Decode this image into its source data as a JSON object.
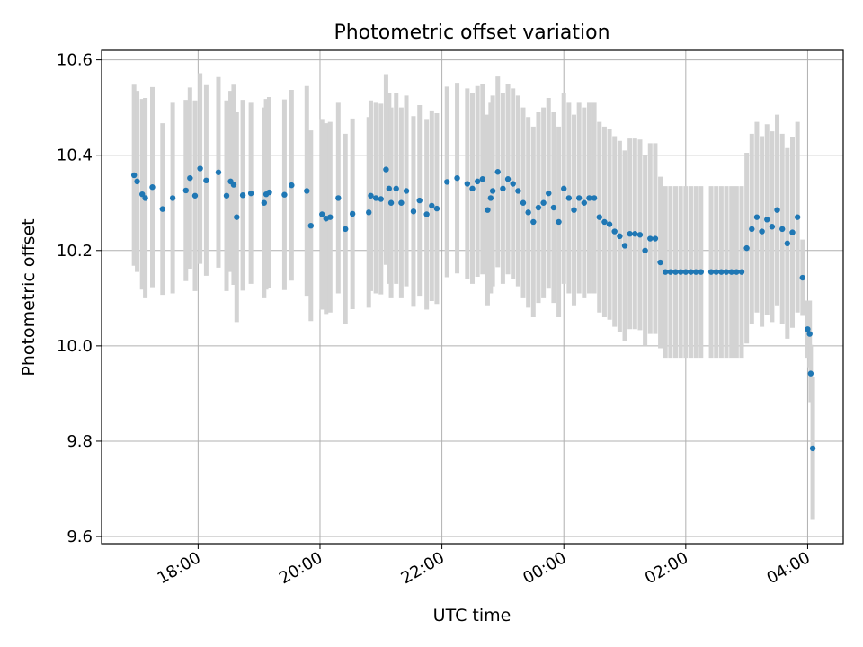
{
  "chart_data": {
    "type": "scatter",
    "title": "Photometric offset variation",
    "xlabel": "UTC time",
    "ylabel": "Photometric offset",
    "x_unit": "UTC time (HH:MM), spanning midnight",
    "x_ticks": [
      "18:00",
      "20:00",
      "22:00",
      "00:00",
      "02:00",
      "04:00"
    ],
    "xlim": [
      "16:25",
      "04:35"
    ],
    "y_ticks": [
      9.6,
      9.8,
      10.0,
      10.2,
      10.4,
      10.6
    ],
    "ylim": [
      9.585,
      10.62
    ],
    "grid": true,
    "legend": "none",
    "colors": {
      "marker": "#1f77b4",
      "errorbar": "#d3d3d3",
      "grid": "#b0b0b0"
    },
    "series": [
      {
        "x": [
          "16:57",
          "17:00",
          "17:05",
          "17:08",
          "17:15",
          "17:25",
          "17:35",
          "17:48",
          "17:52",
          "17:57",
          "18:02",
          "18:08",
          "18:20",
          "18:28",
          "18:32",
          "18:35",
          "18:38",
          "18:44",
          "18:52",
          "19:05",
          "19:07",
          "19:10",
          "19:25",
          "19:32",
          "19:47",
          "19:51",
          "20:02",
          "20:06",
          "20:10",
          "20:18",
          "20:25",
          "20:32",
          "20:48",
          "20:50",
          "20:55",
          "21:00",
          "21:05",
          "21:08",
          "21:10",
          "21:15",
          "21:20",
          "21:25",
          "21:32",
          "21:38",
          "21:45",
          "21:50",
          "21:55",
          "22:05",
          "22:15",
          "22:25",
          "22:30",
          "22:35",
          "22:40",
          "22:45",
          "22:48",
          "22:50",
          "22:55",
          "23:00",
          "23:05",
          "23:10",
          "23:15",
          "23:20",
          "23:25",
          "23:30",
          "23:35",
          "23:40",
          "23:45",
          "23:50",
          "23:55",
          "00:00",
          "00:05",
          "00:10",
          "00:15",
          "00:20",
          "00:25",
          "00:30",
          "00:35",
          "00:40",
          "00:45",
          "00:50",
          "00:55",
          "01:00",
          "01:05",
          "01:10",
          "01:15",
          "01:20",
          "01:25",
          "01:30",
          "01:35",
          "01:40",
          "01:45",
          "01:50",
          "01:55",
          "02:00",
          "02:05",
          "02:10",
          "02:15",
          "02:25",
          "02:30",
          "02:35",
          "02:40",
          "02:45",
          "02:50",
          "02:55",
          "03:00",
          "03:05",
          "03:10",
          "03:15",
          "03:20",
          "03:25",
          "03:30",
          "03:35",
          "03:40",
          "03:45",
          "03:50",
          "03:55",
          "04:00",
          "04:02",
          "04:03",
          "04:05"
        ],
        "y": [
          10.358,
          10.345,
          10.318,
          10.31,
          10.333,
          10.287,
          10.31,
          10.326,
          10.352,
          10.315,
          10.372,
          10.347,
          10.364,
          10.315,
          10.345,
          10.338,
          10.27,
          10.316,
          10.32,
          10.3,
          10.318,
          10.322,
          10.317,
          10.337,
          10.325,
          10.252,
          10.276,
          10.267,
          10.27,
          10.31,
          10.245,
          10.277,
          10.28,
          10.315,
          10.31,
          10.308,
          10.37,
          10.33,
          10.3,
          10.33,
          10.3,
          10.325,
          10.282,
          10.305,
          10.276,
          10.294,
          10.288,
          10.344,
          10.352,
          10.34,
          10.33,
          10.345,
          10.35,
          10.285,
          10.31,
          10.325,
          10.365,
          10.33,
          10.35,
          10.34,
          10.325,
          10.3,
          10.28,
          10.26,
          10.29,
          10.3,
          10.32,
          10.29,
          10.26,
          10.33,
          10.31,
          10.285,
          10.31,
          10.3,
          10.31,
          10.31,
          10.27,
          10.26,
          10.255,
          10.24,
          10.23,
          10.21,
          10.235,
          10.235,
          10.233,
          10.2,
          10.225,
          10.225,
          10.175,
          10.155,
          10.155,
          10.155,
          10.155,
          10.155,
          10.155,
          10.155,
          10.155,
          10.155,
          10.155,
          10.155,
          10.155,
          10.155,
          10.155,
          10.155,
          10.205,
          10.245,
          10.27,
          10.24,
          10.265,
          10.25,
          10.285,
          10.245,
          10.215,
          10.238,
          10.27,
          10.143,
          10.035,
          10.025,
          9.942,
          9.785
        ],
        "yerr": [
          0.19,
          0.19,
          0.2,
          0.21,
          0.21,
          0.18,
          0.2,
          0.19,
          0.19,
          0.2,
          0.2,
          0.2,
          0.2,
          0.2,
          0.19,
          0.21,
          0.22,
          0.2,
          0.19,
          0.2,
          0.2,
          0.2,
          0.2,
          0.2,
          0.22,
          0.2,
          0.2,
          0.2,
          0.2,
          0.2,
          0.2,
          0.2,
          0.2,
          0.2,
          0.2,
          0.2,
          0.2,
          0.2,
          0.2,
          0.2,
          0.2,
          0.2,
          0.2,
          0.2,
          0.2,
          0.2,
          0.2,
          0.2,
          0.2,
          0.2,
          0.2,
          0.2,
          0.2,
          0.2,
          0.2,
          0.2,
          0.2,
          0.2,
          0.2,
          0.2,
          0.2,
          0.2,
          0.2,
          0.2,
          0.2,
          0.2,
          0.2,
          0.2,
          0.2,
          0.2,
          0.2,
          0.2,
          0.2,
          0.2,
          0.2,
          0.2,
          0.2,
          0.2,
          0.2,
          0.2,
          0.2,
          0.2,
          0.2,
          0.2,
          0.2,
          0.2,
          0.2,
          0.2,
          0.18,
          0.18,
          0.18,
          0.18,
          0.18,
          0.18,
          0.18,
          0.18,
          0.18,
          0.18,
          0.18,
          0.18,
          0.18,
          0.18,
          0.18,
          0.18,
          0.2,
          0.2,
          0.2,
          0.2,
          0.2,
          0.2,
          0.2,
          0.2,
          0.2,
          0.2,
          0.2,
          0.08,
          0.06,
          0.07,
          0.06,
          0.15
        ]
      }
    ]
  }
}
